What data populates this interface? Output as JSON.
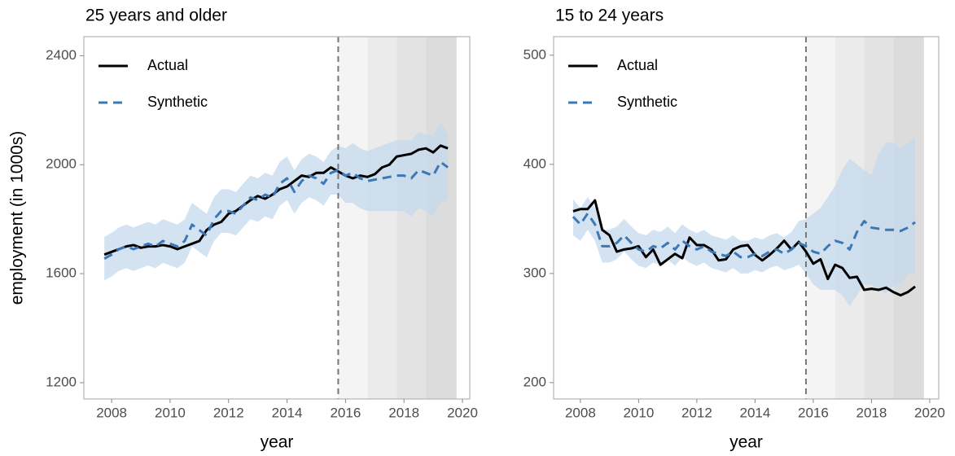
{
  "chart_data": [
    {
      "type": "line",
      "title": "25 years and older",
      "xlabel": "year",
      "ylabel": "employment (in 1000s)",
      "x": [
        2007.75,
        2008,
        2008.25,
        2008.5,
        2008.75,
        2009,
        2009.25,
        2009.5,
        2009.75,
        2010,
        2010.25,
        2010.5,
        2010.75,
        2011,
        2011.25,
        2011.5,
        2011.75,
        2012,
        2012.25,
        2012.5,
        2012.75,
        2013,
        2013.25,
        2013.5,
        2013.75,
        2014,
        2014.25,
        2014.5,
        2014.75,
        2015,
        2015.25,
        2015.5,
        2015.75,
        2016,
        2016.25,
        2016.5,
        2016.75,
        2017,
        2017.25,
        2017.5,
        2017.75,
        2018,
        2018.25,
        2018.5,
        2018.75,
        2019,
        2019.25,
        2019.5
      ],
      "series": [
        {
          "name": "Actual",
          "color": "#000000",
          "dashed": false,
          "values": [
            1670,
            1680,
            1690,
            1700,
            1705,
            1695,
            1700,
            1700,
            1705,
            1700,
            1690,
            1700,
            1710,
            1720,
            1760,
            1780,
            1790,
            1820,
            1830,
            1850,
            1870,
            1885,
            1875,
            1890,
            1910,
            1920,
            1940,
            1960,
            1955,
            1970,
            1970,
            1990,
            1975,
            1960,
            1950,
            1960,
            1955,
            1965,
            1990,
            2000,
            2030,
            2035,
            2040,
            2055,
            2060,
            2045,
            2070,
            2060
          ]
        },
        {
          "name": "Synthetic",
          "color": "#3b78b5",
          "dashed": true,
          "values": [
            1655,
            1670,
            1690,
            1700,
            1690,
            1700,
            1710,
            1700,
            1720,
            1710,
            1700,
            1720,
            1780,
            1760,
            1740,
            1800,
            1830,
            1830,
            1820,
            1850,
            1880,
            1870,
            1890,
            1880,
            1930,
            1950,
            1900,
            1940,
            1960,
            1950,
            1930,
            1970,
            1980,
            1960,
            1970,
            1950,
            1940,
            1945,
            1950,
            1955,
            1960,
            1960,
            1950,
            1980,
            1970,
            1960,
            2010,
            1990
          ]
        }
      ],
      "band": {
        "color": "#c6d9ec",
        "lower": [
          1575,
          1590,
          1610,
          1620,
          1610,
          1620,
          1630,
          1620,
          1640,
          1630,
          1620,
          1640,
          1700,
          1680,
          1660,
          1720,
          1750,
          1750,
          1740,
          1770,
          1800,
          1790,
          1810,
          1800,
          1850,
          1870,
          1820,
          1860,
          1880,
          1870,
          1850,
          1890,
          1890,
          1860,
          1860,
          1840,
          1830,
          1830,
          1830,
          1830,
          1830,
          1830,
          1810,
          1840,
          1830,
          1810,
          1860,
          1870
        ],
        "upper": [
          1735,
          1750,
          1770,
          1780,
          1770,
          1780,
          1790,
          1780,
          1800,
          1790,
          1780,
          1800,
          1860,
          1840,
          1820,
          1880,
          1910,
          1910,
          1900,
          1930,
          1960,
          1950,
          1970,
          1960,
          2010,
          2030,
          1980,
          2020,
          2040,
          2030,
          2010,
          2050,
          2070,
          2060,
          2080,
          2060,
          2050,
          2060,
          2070,
          2080,
          2090,
          2090,
          2090,
          2120,
          2110,
          2110,
          2160,
          2110
        ]
      },
      "vline": 2015.75,
      "shaded_regions": [
        {
          "xlim": [
            2015.75,
            2016.75
          ],
          "color": "#f4f4f4"
        },
        {
          "xlim": [
            2016.75,
            2017.75
          ],
          "color": "#ebebeb"
        },
        {
          "xlim": [
            2017.75,
            2018.75
          ],
          "color": "#e3e3e3"
        },
        {
          "xlim": [
            2018.75,
            2019.8
          ],
          "color": "#dcdcdc"
        }
      ],
      "xlim": [
        2007.05,
        2020.25
      ],
      "xticks": [
        2008,
        2010,
        2012,
        2014,
        2016,
        2018,
        2020
      ],
      "ylim": [
        1140,
        2470
      ],
      "yticks": [
        1200,
        1600,
        2000,
        2400
      ],
      "legend": "top-left"
    },
    {
      "type": "line",
      "title": "15 to 24 years",
      "xlabel": "year",
      "x": [
        2007.75,
        2008,
        2008.25,
        2008.5,
        2008.75,
        2009,
        2009.25,
        2009.5,
        2009.75,
        2010,
        2010.25,
        2010.5,
        2010.75,
        2011,
        2011.25,
        2011.5,
        2011.75,
        2012,
        2012.25,
        2012.5,
        2012.75,
        2013,
        2013.25,
        2013.5,
        2013.75,
        2014,
        2014.25,
        2014.5,
        2014.75,
        2015,
        2015.25,
        2015.5,
        2015.75,
        2016,
        2016.25,
        2016.5,
        2016.75,
        2017,
        2017.25,
        2017.5,
        2017.75,
        2018,
        2018.25,
        2018.5,
        2018.75,
        2019,
        2019.25,
        2019.5
      ],
      "series": [
        {
          "name": "Actual",
          "color": "#000000",
          "dashed": false,
          "values": [
            357,
            359,
            359,
            367,
            340,
            335,
            320,
            322,
            323,
            325,
            315,
            322,
            308,
            313,
            318,
            314,
            333,
            326,
            326,
            322,
            312,
            313,
            322,
            325,
            326,
            317,
            312,
            317,
            323,
            330,
            322,
            329,
            320,
            309,
            313,
            295,
            308,
            305,
            296,
            297,
            285,
            286,
            285,
            287,
            283,
            280,
            283,
            288
          ]
        },
        {
          "name": "Synthetic",
          "color": "#3b78b5",
          "dashed": true,
          "values": [
            352,
            345,
            355,
            345,
            325,
            325,
            328,
            335,
            328,
            322,
            320,
            325,
            323,
            328,
            322,
            330,
            325,
            322,
            325,
            320,
            318,
            316,
            320,
            315,
            315,
            318,
            316,
            320,
            322,
            318,
            322,
            328,
            325,
            320,
            318,
            325,
            330,
            328,
            322,
            338,
            348,
            342,
            341,
            340,
            340,
            339,
            342,
            347
          ]
        }
      ],
      "band": {
        "color": "#c6d9ec",
        "lower": [
          335,
          330,
          340,
          330,
          310,
          310,
          313,
          320,
          313,
          307,
          305,
          310,
          308,
          313,
          307,
          315,
          310,
          307,
          310,
          305,
          303,
          301,
          305,
          300,
          300,
          303,
          301,
          305,
          307,
          303,
          305,
          308,
          300,
          290,
          285,
          285,
          285,
          280,
          270,
          280,
          290,
          290,
          285,
          282,
          288,
          290,
          300,
          300
        ],
        "upper": [
          368,
          360,
          370,
          360,
          340,
          340,
          343,
          350,
          343,
          337,
          335,
          340,
          338,
          343,
          337,
          345,
          340,
          337,
          340,
          335,
          333,
          331,
          335,
          330,
          330,
          333,
          331,
          335,
          337,
          333,
          338,
          348,
          350,
          355,
          360,
          370,
          380,
          395,
          405,
          400,
          395,
          390,
          410,
          420,
          420,
          415,
          420,
          425
        ]
      },
      "vline": 2015.75,
      "shaded_regions": [
        {
          "xlim": [
            2015.75,
            2016.75
          ],
          "color": "#f4f4f4"
        },
        {
          "xlim": [
            2016.75,
            2017.75
          ],
          "color": "#ebebeb"
        },
        {
          "xlim": [
            2017.75,
            2018.75
          ],
          "color": "#e3e3e3"
        },
        {
          "xlim": [
            2018.75,
            2019.8
          ],
          "color": "#dcdcdc"
        }
      ],
      "xlim": [
        2007.08,
        2020.31
      ],
      "xticks": [
        2008,
        2010,
        2012,
        2014,
        2016,
        2018,
        2020
      ],
      "ylim": [
        185,
        517
      ],
      "yticks": [
        200,
        300,
        400,
        500
      ],
      "legend": "top-left"
    }
  ]
}
